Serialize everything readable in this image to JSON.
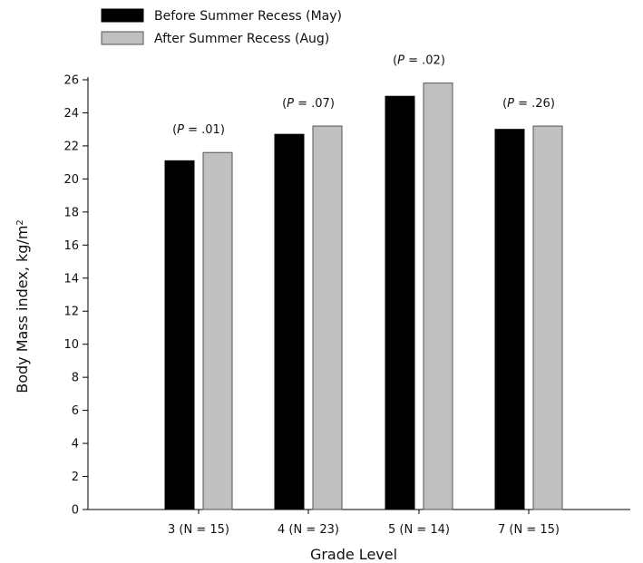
{
  "chart_data": {
    "type": "bar",
    "xlabel": "Grade Level",
    "ylabel": "Body Mass index, kg/m",
    "ylabel_superscript": "2",
    "ylim": [
      0,
      26
    ],
    "yticks": [
      0,
      2,
      4,
      6,
      8,
      10,
      12,
      14,
      16,
      18,
      20,
      22,
      24,
      26
    ],
    "categories": [
      "3 (N = 15)",
      "4 (N = 23)",
      "5 (N = 14)",
      "7 (N = 15)"
    ],
    "series": [
      {
        "name": "Before Summer Recess (May)",
        "color": "#000000",
        "values": [
          21.1,
          22.7,
          25.0,
          23.0
        ]
      },
      {
        "name": "After Summer Recess (Aug)",
        "color": "#c0c0c0",
        "values": [
          21.6,
          23.2,
          25.8,
          23.2
        ]
      }
    ],
    "annotations": [
      {
        "p_prefix": "(",
        "p_symbol": "P",
        "p_value": " = .01)"
      },
      {
        "p_prefix": "(",
        "p_symbol": "P",
        "p_value": " = .07)"
      },
      {
        "p_prefix": "(",
        "p_symbol": "P",
        "p_value": " = .02)"
      },
      {
        "p_prefix": "(",
        "p_symbol": "P",
        "p_value": " = .26)"
      }
    ],
    "grid": false,
    "legend_position": "top-left"
  }
}
